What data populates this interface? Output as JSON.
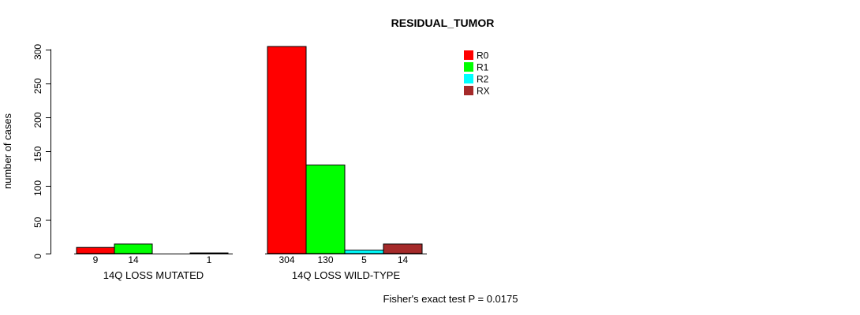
{
  "chart_data": {
    "type": "bar",
    "title": "RESIDUAL_TUMOR",
    "ylabel": "number of cases",
    "xlabel": "",
    "ylim": [
      0,
      300
    ],
    "yticks": [
      0,
      50,
      100,
      150,
      200,
      250,
      300
    ],
    "grid": false,
    "annotation": "Fisher's exact test P = 0.0175",
    "legend": {
      "position": "top-right-inside",
      "entries": [
        {
          "label": "R0",
          "color": "#ff0000"
        },
        {
          "label": "R1",
          "color": "#00ff00"
        },
        {
          "label": "R2",
          "color": "#00ffff"
        },
        {
          "label": "RX",
          "color": "#a52a2a"
        }
      ]
    },
    "groups": [
      {
        "label": "14Q LOSS MUTATED",
        "values": [
          9,
          14,
          0,
          1
        ],
        "bar_labels": [
          "9",
          "14",
          "",
          "1"
        ]
      },
      {
        "label": "14Q LOSS WILD-TYPE",
        "values": [
          304,
          130,
          5,
          14
        ],
        "bar_labels": [
          "304",
          "130",
          "5",
          "14"
        ]
      }
    ]
  }
}
